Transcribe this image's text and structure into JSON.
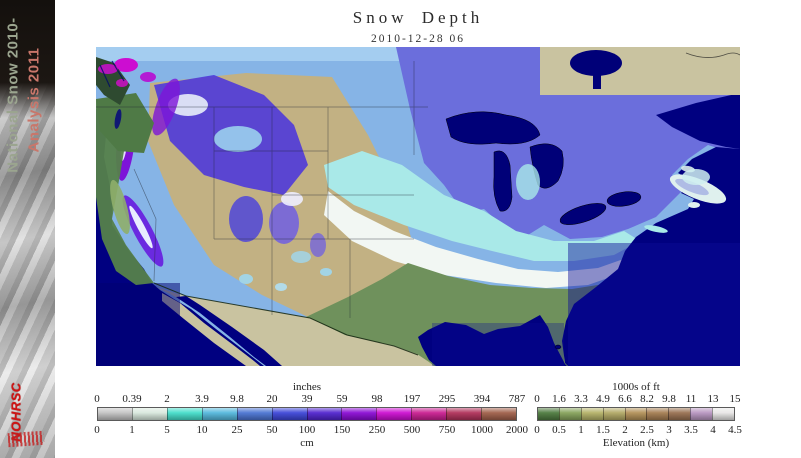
{
  "sidebar": {
    "title_line1": "National Snow 2010-",
    "title_line2": "Analysis 2011",
    "logo": "NOHRSC"
  },
  "header": {
    "title": "Snow Depth",
    "datetime": "2010-12-28 06"
  },
  "legends": {
    "snow": {
      "unit_top": "inches",
      "unit_bottom": "cm",
      "ticks_top": [
        "0",
        "0.39",
        "2",
        "3.9",
        "9.8",
        "20",
        "39",
        "59",
        "98",
        "197",
        "295",
        "394",
        "787"
      ],
      "ticks_bottom": [
        "0",
        "1",
        "5",
        "10",
        "25",
        "50",
        "100",
        "150",
        "250",
        "500",
        "750",
        "1000",
        "2000"
      ],
      "colors": [
        "#c2c2c2",
        "#d7e8dc",
        "#43ddca",
        "#53b7dc",
        "#4a73d2",
        "#3c45d8",
        "#5023cf",
        "#8a0ad4",
        "#cc0dd1",
        "#c91d90",
        "#b03059",
        "#a05f49"
      ]
    },
    "elevation": {
      "unit_top": "1000s of ft",
      "unit_bottom": "Elevation (km)",
      "ticks_top": [
        "0",
        "1.6",
        "3.3",
        "4.9",
        "6.6",
        "8.2",
        "9.8",
        "11",
        "13",
        "15"
      ],
      "ticks_bottom": [
        "0",
        "0.5",
        "1",
        "1.5",
        "2",
        "2.5",
        "3",
        "3.5",
        "4",
        "4.5"
      ],
      "colors": [
        "#4d7a3e",
        "#85a25a",
        "#b4b167",
        "#b1a864",
        "#b29057",
        "#a47c50",
        "#987050",
        "#b795c0",
        "#e7e6e5"
      ]
    }
  },
  "map": {
    "ocean": "#000080",
    "lake": "#000078",
    "nodata": "#c9c3a0",
    "base_snow_blue": "#86b4e6",
    "top_strip_blue": "#a4cdf0",
    "slate_blue": "#6b6edc",
    "pale_cyan": "#a9e9e8",
    "snow_white": "#f2f7f3",
    "plains_tan": "#c2b183",
    "green_low": "#6f915c",
    "coast_green": "#55814a",
    "indigo_snow": "#4b35dc",
    "purple_snow": "#7d14d8",
    "magenta_snow": "#cc0dd1",
    "blue_snow": "#4f46d9"
  }
}
